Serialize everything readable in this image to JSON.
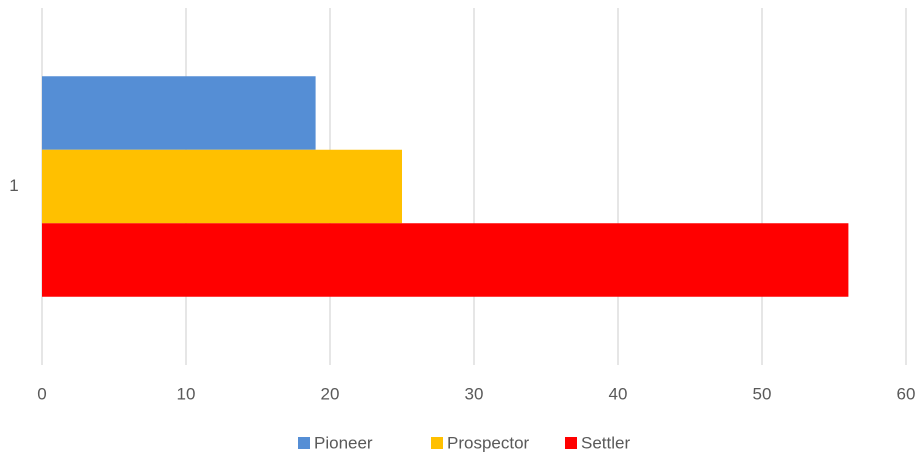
{
  "chart_data": {
    "type": "bar",
    "orientation": "horizontal",
    "categories": [
      "1"
    ],
    "series": [
      {
        "name": "Pioneer",
        "color": "#558ed5",
        "values": [
          19
        ]
      },
      {
        "name": "Prospector",
        "color": "#ffc000",
        "values": [
          25
        ]
      },
      {
        "name": "Settler",
        "color": "#ff0000",
        "values": [
          56
        ]
      }
    ],
    "xlim": [
      0,
      60
    ],
    "xticks": [
      0,
      10,
      20,
      30,
      40,
      50,
      60
    ],
    "grid": true,
    "legend": "bottom"
  }
}
